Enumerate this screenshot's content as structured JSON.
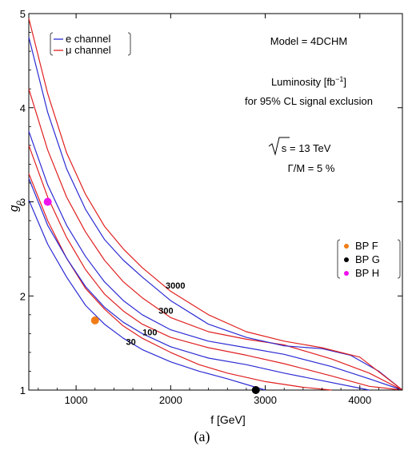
{
  "chart_data": {
    "type": "line",
    "title": "",
    "xlabel": "f [GeV]",
    "ylabel": "gρ",
    "xlim": [
      500,
      4450
    ],
    "ylim": [
      1,
      5
    ],
    "x_ticks": [
      1000,
      2000,
      3000,
      4000
    ],
    "y_ticks": [
      1,
      2,
      3,
      4,
      5
    ],
    "annotations": {
      "model": "Model = 4DCHM",
      "lumi_line1": "Luminosity [fb",
      "lumi_sup": "−1",
      "lumi_close": "]",
      "lumi_line2": "for 95% CL signal exclusion",
      "sqrt_s_value": " = 13 TeV",
      "sqrt_s_symbol": "s",
      "width": "Γ/M = 5 %"
    },
    "legend": [
      {
        "name": "e channel",
        "color": "#2b2bd4"
      },
      {
        "name": "μ channel",
        "color": "#e02020"
      }
    ],
    "benchmark_legend": [
      {
        "name": "BP F",
        "color": "#f07c18"
      },
      {
        "name": "BP G",
        "color": "#000000"
      },
      {
        "name": "BP H",
        "color": "#ee10ee"
      }
    ],
    "benchmark_points": [
      {
        "name": "BP F",
        "x": 1200,
        "y": 1.74
      },
      {
        "name": "BP G",
        "x": 2900,
        "y": 1.0
      },
      {
        "name": "BP H",
        "x": 700,
        "y": 3.0
      }
    ],
    "series": [
      {
        "luminosity": "30",
        "channel": "e",
        "color": "#2b2bd4",
        "points": [
          [
            500,
            3.02
          ],
          [
            700,
            2.55
          ],
          [
            900,
            2.2
          ],
          [
            1100,
            1.9
          ],
          [
            1300,
            1.7
          ],
          [
            1500,
            1.55
          ],
          [
            1700,
            1.43
          ],
          [
            2000,
            1.3
          ],
          [
            2300,
            1.2
          ],
          [
            2600,
            1.12
          ],
          [
            2900,
            1.03
          ],
          [
            3000,
            1.0
          ]
        ]
      },
      {
        "luminosity": "30",
        "channel": "μ",
        "color": "#e02020",
        "points": [
          [
            500,
            3.3
          ],
          [
            700,
            2.8
          ],
          [
            900,
            2.4
          ],
          [
            1100,
            2.08
          ],
          [
            1300,
            1.86
          ],
          [
            1500,
            1.68
          ],
          [
            1700,
            1.55
          ],
          [
            2000,
            1.4
          ],
          [
            2300,
            1.27
          ],
          [
            2600,
            1.18
          ],
          [
            3000,
            1.09
          ],
          [
            3400,
            1.03
          ],
          [
            3700,
            1.0
          ]
        ]
      },
      {
        "luminosity": "100",
        "channel": "e",
        "color": "#2b2bd4",
        "points": [
          [
            500,
            3.25
          ],
          [
            700,
            2.75
          ],
          [
            900,
            2.4
          ],
          [
            1100,
            2.1
          ],
          [
            1300,
            1.88
          ],
          [
            1500,
            1.72
          ],
          [
            1700,
            1.6
          ],
          [
            2000,
            1.46
          ],
          [
            2400,
            1.34
          ],
          [
            2800,
            1.27
          ],
          [
            3200,
            1.18
          ],
          [
            3600,
            1.1
          ],
          [
            4000,
            1.02
          ],
          [
            4100,
            1.0
          ]
        ]
      },
      {
        "luminosity": "100",
        "channel": "μ",
        "color": "#e02020",
        "points": [
          [
            500,
            3.6
          ],
          [
            700,
            3.05
          ],
          [
            900,
            2.62
          ],
          [
            1100,
            2.28
          ],
          [
            1300,
            2.02
          ],
          [
            1500,
            1.84
          ],
          [
            1700,
            1.7
          ],
          [
            2000,
            1.56
          ],
          [
            2400,
            1.45
          ],
          [
            2800,
            1.37
          ],
          [
            3200,
            1.28
          ],
          [
            3700,
            1.15
          ],
          [
            4100,
            1.04
          ],
          [
            4450,
            1.0
          ]
        ]
      },
      {
        "luminosity": "300",
        "channel": "e",
        "color": "#2b2bd4",
        "points": [
          [
            500,
            3.75
          ],
          [
            700,
            3.18
          ],
          [
            900,
            2.75
          ],
          [
            1100,
            2.42
          ],
          [
            1300,
            2.15
          ],
          [
            1500,
            1.95
          ],
          [
            1700,
            1.8
          ],
          [
            2000,
            1.64
          ],
          [
            2400,
            1.52
          ],
          [
            2800,
            1.45
          ],
          [
            3200,
            1.38
          ],
          [
            3700,
            1.25
          ],
          [
            4100,
            1.12
          ],
          [
            4450,
            1.0
          ]
        ]
      },
      {
        "luminosity": "300",
        "channel": "μ",
        "color": "#e02020",
        "points": [
          [
            500,
            4.2
          ],
          [
            700,
            3.55
          ],
          [
            900,
            3.05
          ],
          [
            1100,
            2.68
          ],
          [
            1300,
            2.38
          ],
          [
            1500,
            2.15
          ],
          [
            1700,
            1.98
          ],
          [
            2000,
            1.77
          ],
          [
            2400,
            1.62
          ],
          [
            2800,
            1.54
          ],
          [
            3200,
            1.48
          ],
          [
            3700,
            1.33
          ],
          [
            4100,
            1.18
          ],
          [
            4450,
            1.0
          ]
        ]
      },
      {
        "luminosity": "3000",
        "channel": "e",
        "color": "#2b2bd4",
        "points": [
          [
            500,
            4.75
          ],
          [
            700,
            3.95
          ],
          [
            900,
            3.35
          ],
          [
            1100,
            2.92
          ],
          [
            1300,
            2.6
          ],
          [
            1500,
            2.38
          ],
          [
            1700,
            2.2
          ],
          [
            2000,
            1.95
          ],
          [
            2400,
            1.7
          ],
          [
            2800,
            1.56
          ],
          [
            3200,
            1.47
          ],
          [
            3600,
            1.44
          ],
          [
            3900,
            1.37
          ],
          [
            4200,
            1.2
          ],
          [
            4450,
            1.0
          ]
        ]
      },
      {
        "luminosity": "3000",
        "channel": "μ",
        "color": "#e02020",
        "points": [
          [
            500,
            4.95
          ],
          [
            700,
            4.15
          ],
          [
            900,
            3.52
          ],
          [
            1100,
            3.08
          ],
          [
            1300,
            2.74
          ],
          [
            1500,
            2.5
          ],
          [
            1700,
            2.3
          ],
          [
            2000,
            2.05
          ],
          [
            2400,
            1.8
          ],
          [
            2800,
            1.62
          ],
          [
            3200,
            1.52
          ],
          [
            3600,
            1.45
          ],
          [
            4000,
            1.35
          ],
          [
            4450,
            1.0
          ]
        ]
      }
    ],
    "contour_labels": [
      {
        "text": "3000",
        "x": 2050,
        "y": 2.08
      },
      {
        "text": "300",
        "x": 1950,
        "y": 1.81
      },
      {
        "text": "100",
        "x": 1780,
        "y": 1.58
      },
      {
        "text": "30",
        "x": 1580,
        "y": 1.48
      }
    ]
  },
  "caption": "(a)"
}
